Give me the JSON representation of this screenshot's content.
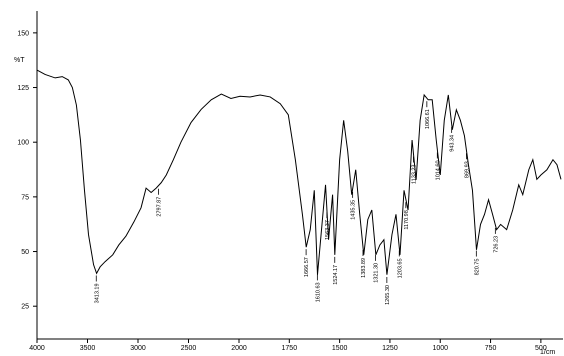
{
  "chart_data": {
    "type": "line",
    "ylabel": "%T",
    "xlabel": "1/cm",
    "xlim": [
      4000,
      400
    ],
    "x_scale_break": 2000,
    "ylim": [
      10,
      160
    ],
    "xticks": [
      4000,
      3500,
      3000,
      2500,
      2000,
      1750,
      1500,
      1250,
      1000,
      750,
      500
    ],
    "yticks": [
      25,
      50,
      75,
      100,
      125,
      150
    ],
    "series": [
      {
        "name": "spectrum",
        "color": "#000000",
        "x": [
          4000,
          3920,
          3820,
          3750,
          3690,
          3650,
          3610,
          3570,
          3530,
          3490,
          3440,
          3410,
          3375,
          3325,
          3250,
          3190,
          3120,
          3040,
          2970,
          2920,
          2870,
          2820,
          2770,
          2720,
          2650,
          2575,
          2475,
          2375,
          2275,
          2175,
          2080,
          1995,
          1945,
          1895,
          1845,
          1795,
          1755,
          1720,
          1685,
          1666,
          1646,
          1626,
          1610,
          1590,
          1570,
          1555,
          1535,
          1524,
          1500,
          1480,
          1460,
          1440,
          1420,
          1400,
          1380,
          1360,
          1340,
          1320,
          1300,
          1280,
          1265,
          1240,
          1220,
          1200,
          1180,
          1160,
          1140,
          1120,
          1100,
          1080,
          1060,
          1040,
          1020,
          1000,
          980,
          960,
          940,
          920,
          900,
          880,
          860,
          840,
          820,
          800,
          780,
          760,
          740,
          720,
          700,
          670,
          640,
          610,
          590,
          560,
          540,
          520,
          500,
          470,
          440,
          420,
          400
        ],
        "values": [
          133,
          131,
          129.4,
          130,
          128.5,
          125,
          117,
          101,
          78,
          57.7,
          44,
          40,
          43,
          45.4,
          48.5,
          53,
          57,
          63.6,
          70,
          79,
          77,
          79,
          81.5,
          85,
          92,
          100,
          109,
          115,
          119.4,
          122,
          120,
          121,
          120.7,
          121.6,
          120.7,
          117.6,
          112.5,
          92,
          67,
          52,
          60,
          78,
          39.4,
          60,
          80.5,
          55.4,
          76,
          48.5,
          92,
          110,
          96,
          76,
          87.4,
          67,
          48.5,
          64.6,
          69,
          48.5,
          53,
          55.4,
          39.4,
          57.7,
          67,
          48.5,
          78,
          69,
          101,
          82.8,
          110,
          121.6,
          119.4,
          119.4,
          101,
          85,
          110,
          121.6,
          105.7,
          114.8,
          110,
          103,
          89.7,
          78,
          50.8,
          62.4,
          67,
          73.7,
          67,
          60,
          62.4,
          60,
          69,
          80.5,
          76,
          87.4,
          92,
          83,
          85,
          87.4,
          92,
          89.7,
          83
        ]
      }
    ],
    "annotations": [
      {
        "x": 3413.19,
        "label": "3413.19"
      },
      {
        "x": 2797.87,
        "label": "2797.87"
      },
      {
        "x": 1666.57,
        "label": "1666.57"
      },
      {
        "x": 1610.63,
        "label": "1610.63"
      },
      {
        "x": 1563.37,
        "label": "1563.37"
      },
      {
        "x": 1524.17,
        "label": "1524.17"
      },
      {
        "x": 1435.35,
        "label": "1435.35"
      },
      {
        "x": 1383.89,
        "label": "1383.89"
      },
      {
        "x": 1321.3,
        "label": "1321.30"
      },
      {
        "x": 1265.3,
        "label": "1265.30"
      },
      {
        "x": 1203.65,
        "label": "1203.65"
      },
      {
        "x": 1170.98,
        "label": "1170.98"
      },
      {
        "x": 1133.23,
        "label": "1133.23"
      },
      {
        "x": 1066.61,
        "label": "1066.61"
      },
      {
        "x": 1014.6,
        "label": "1014.60"
      },
      {
        "x": 943.34,
        "label": "943.34"
      },
      {
        "x": 869.93,
        "label": "869.93"
      },
      {
        "x": 820.75,
        "label": "820.75"
      },
      {
        "x": 726.23,
        "label": "726.23"
      }
    ]
  }
}
